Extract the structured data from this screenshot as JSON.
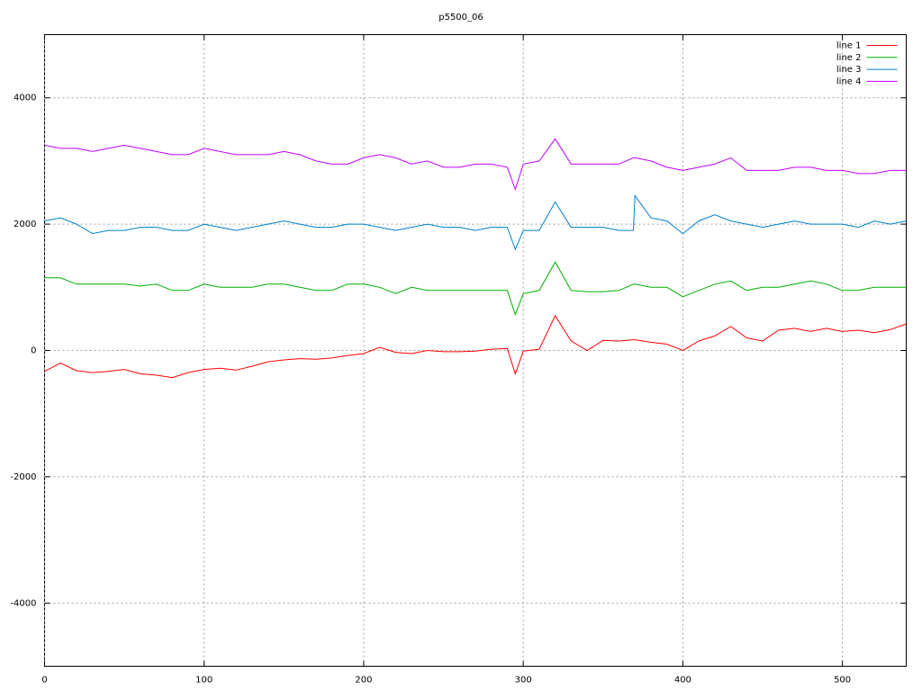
{
  "chart_data": {
    "type": "line",
    "title": "p5500_06",
    "x": [
      0,
      10,
      20,
      30,
      40,
      50,
      60,
      70,
      80,
      90,
      100,
      110,
      120,
      130,
      140,
      150,
      160,
      170,
      180,
      190,
      200,
      210,
      220,
      230,
      240,
      250,
      260,
      270,
      280,
      290,
      295,
      300,
      310,
      320,
      330,
      340,
      350,
      360,
      369,
      370,
      380,
      390,
      400,
      410,
      420,
      430,
      440,
      450,
      460,
      470,
      480,
      490,
      500,
      510,
      520,
      530,
      540
    ],
    "series": [
      {
        "name": "line 1",
        "color": "#ff0000",
        "values": [
          -330,
          -200,
          -320,
          -350,
          -330,
          -300,
          -370,
          -390,
          -430,
          -350,
          -300,
          -280,
          -310,
          -250,
          -180,
          -150,
          -130,
          -140,
          -120,
          -80,
          -50,
          50,
          -30,
          -50,
          0,
          -20,
          -20,
          -10,
          20,
          30,
          -370,
          -10,
          20,
          550,
          150,
          0,
          160,
          150,
          170,
          170,
          130,
          100,
          0,
          150,
          230,
          380,
          200,
          150,
          320,
          350,
          300,
          350,
          300,
          320,
          280,
          330,
          420
        ]
      },
      {
        "name": "line 2",
        "color": "#00b000",
        "values": [
          1150,
          1150,
          1050,
          1050,
          1050,
          1050,
          1020,
          1050,
          950,
          950,
          1050,
          1000,
          1000,
          1000,
          1050,
          1050,
          1000,
          950,
          950,
          1050,
          1050,
          1000,
          900,
          1000,
          950,
          950,
          950,
          950,
          950,
          950,
          570,
          900,
          950,
          1400,
          950,
          930,
          930,
          950,
          1050,
          1050,
          1000,
          1000,
          850,
          950,
          1050,
          1100,
          950,
          1000,
          1000,
          1050,
          1100,
          1050,
          950,
          950,
          1000,
          1000,
          1000
        ]
      },
      {
        "name": "line 3",
        "color": "#0080c8",
        "values": [
          2050,
          2100,
          2000,
          1850,
          1900,
          1900,
          1950,
          1950,
          1900,
          1900,
          2000,
          1950,
          1900,
          1950,
          2000,
          2050,
          2000,
          1950,
          1950,
          2000,
          2000,
          1950,
          1900,
          1950,
          2000,
          1950,
          1950,
          1900,
          1950,
          1950,
          1600,
          1900,
          1900,
          2350,
          1950,
          1950,
          1950,
          1900,
          1900,
          2450,
          2100,
          2050,
          1850,
          2050,
          2150,
          2050,
          2000,
          1950,
          2000,
          2050,
          2000,
          2000,
          2000,
          1950,
          2050,
          2000,
          2050
        ]
      },
      {
        "name": "line 4",
        "color": "#c000ff",
        "values": [
          3250,
          3200,
          3200,
          3150,
          3200,
          3250,
          3200,
          3150,
          3100,
          3100,
          3200,
          3150,
          3100,
          3100,
          3100,
          3150,
          3100,
          3000,
          2950,
          2950,
          3050,
          3100,
          3050,
          2950,
          3000,
          2900,
          2900,
          2950,
          2950,
          2900,
          2550,
          2950,
          3000,
          3350,
          2950,
          2950,
          2950,
          2950,
          3050,
          3050,
          3000,
          2900,
          2850,
          2900,
          2950,
          3050,
          2850,
          2850,
          2850,
          2900,
          2900,
          2850,
          2850,
          2800,
          2800,
          2850,
          2850
        ]
      }
    ],
    "xlim": [
      0,
      540
    ],
    "xticks": [
      0,
      100,
      200,
      300,
      400,
      500
    ],
    "ylim": [
      -5000,
      5000
    ],
    "yticks": [
      -4000,
      -2000,
      0,
      2000,
      4000
    ],
    "grid": true,
    "legend": "top-right"
  }
}
